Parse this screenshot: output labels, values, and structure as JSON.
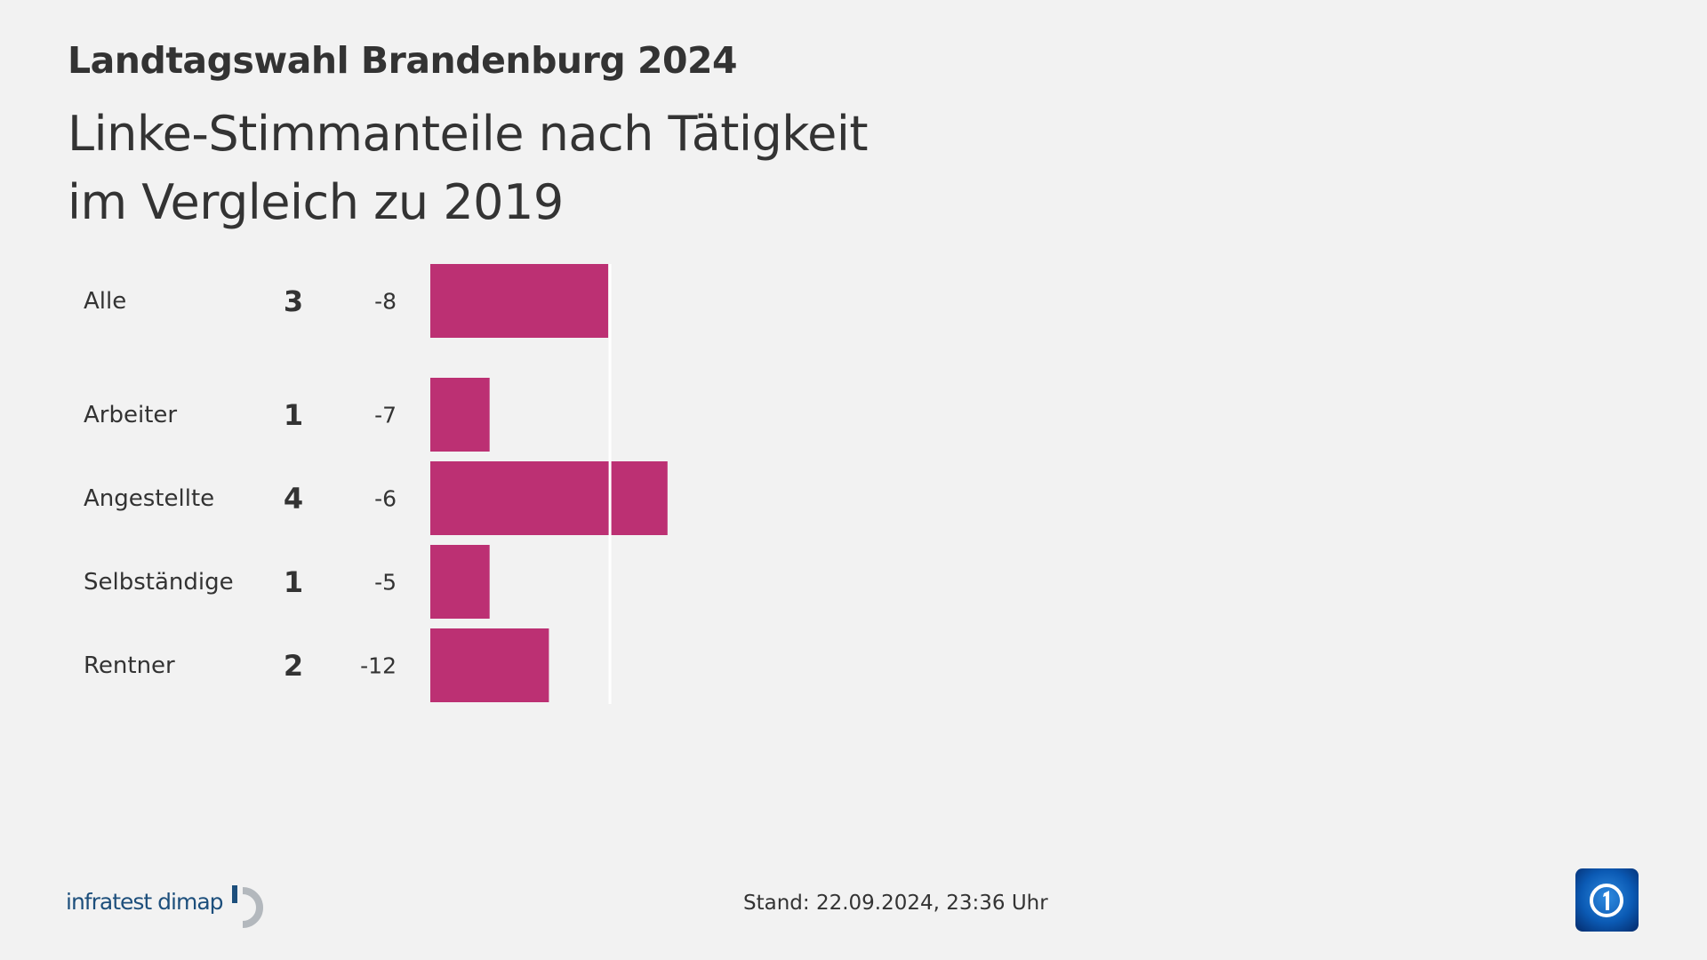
{
  "header": {
    "title": "Landtagswahl Brandenburg 2024",
    "subtitle_line1": "Linke-Stimmanteile nach Tätigkeit",
    "subtitle_line2": "im Vergleich zu 2019"
  },
  "chart_data": {
    "type": "bar",
    "orientation": "horizontal",
    "categories": [
      "Alle",
      "Arbeiter",
      "Angestellte",
      "Selbständige",
      "Rentner"
    ],
    "values": [
      3,
      1,
      4,
      1,
      2
    ],
    "changes": [
      "-8",
      "-7",
      "-6",
      "-5",
      "-12"
    ],
    "reference_line": 3,
    "bar_color": "#bc3073",
    "xlim": [
      0,
      10
    ]
  },
  "footer": {
    "source_logo": "infratest dimap",
    "stand": "Stand:  22.09.2024, 23:36 Uhr",
    "broadcaster_logo": "ARD Das Erste"
  }
}
